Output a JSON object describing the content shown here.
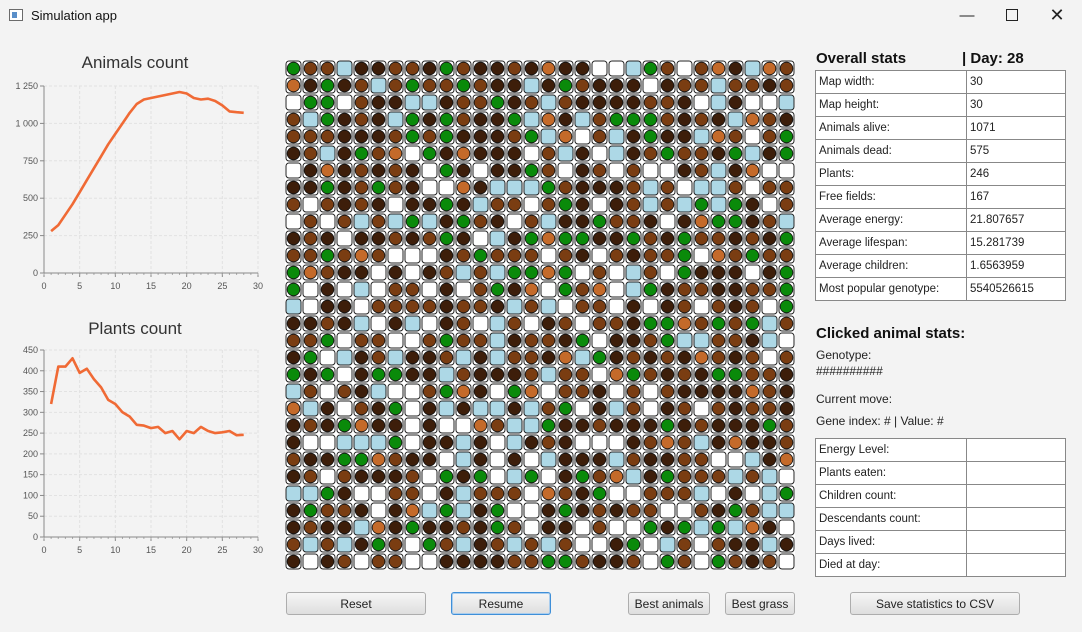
{
  "window": {
    "title": "Simulation app",
    "minimize_icon": "minimize-icon",
    "maximize_icon": "maximize-icon",
    "close_icon": "close-icon"
  },
  "chart_data": [
    {
      "type": "line",
      "title": "Animals count",
      "xlim": [
        0,
        30
      ],
      "ylim": [
        0,
        1250
      ],
      "xticks": [
        "0",
        "5",
        "10",
        "15",
        "20",
        "25",
        "30"
      ],
      "yticks": [
        "0",
        "250",
        "500",
        "750",
        "1 000",
        "1 250"
      ],
      "grid": true,
      "color": "#f06a35",
      "x": [
        1,
        2,
        3,
        4,
        5,
        6,
        7,
        8,
        9,
        10,
        11,
        12,
        13,
        14,
        15,
        16,
        17,
        18,
        19,
        20,
        21,
        22,
        23,
        24,
        25,
        26,
        27,
        28
      ],
      "y": [
        280,
        320,
        390,
        460,
        540,
        620,
        700,
        780,
        860,
        930,
        1000,
        1070,
        1130,
        1160,
        1170,
        1180,
        1190,
        1200,
        1210,
        1200,
        1170,
        1160,
        1165,
        1150,
        1120,
        1080,
        1075,
        1071
      ]
    },
    {
      "type": "line",
      "title": "Plants count",
      "xlim": [
        0,
        30
      ],
      "ylim": [
        0,
        450
      ],
      "xticks": [
        "0",
        "5",
        "10",
        "15",
        "20",
        "25",
        "30"
      ],
      "yticks": [
        "0",
        "50",
        "100",
        "150",
        "200",
        "250",
        "300",
        "350",
        "400",
        "450"
      ],
      "grid": true,
      "color": "#f06a35",
      "x": [
        1,
        2,
        3,
        4,
        5,
        6,
        7,
        8,
        9,
        10,
        11,
        12,
        13,
        14,
        15,
        16,
        17,
        18,
        19,
        20,
        21,
        22,
        23,
        24,
        25,
        26,
        27,
        28
      ],
      "y": [
        320,
        410,
        410,
        430,
        395,
        405,
        380,
        360,
        330,
        320,
        300,
        290,
        270,
        268,
        262,
        265,
        250,
        255,
        235,
        255,
        250,
        265,
        255,
        250,
        252,
        255,
        245,
        246
      ]
    }
  ],
  "board": {
    "size": 30,
    "colors": {
      "empty": "#ffffff",
      "water": "#add8e6",
      "plant": "#0a8a0a",
      "animal_dark": "#3d1e0a",
      "animal_mid": "#7a3d12",
      "animal_light": "#c46a2a"
    }
  },
  "overall": {
    "heading": "Overall stats",
    "day": "| Day: 28",
    "rows": [
      {
        "key": "Map width:",
        "value": "30"
      },
      {
        "key": "Map height:",
        "value": "30"
      },
      {
        "key": "Animals alive:",
        "value": "1071"
      },
      {
        "key": "Animals dead:",
        "value": "575"
      },
      {
        "key": "Plants:",
        "value": "246"
      },
      {
        "key": "Free fields:",
        "value": "167"
      },
      {
        "key": "Average energy:",
        "value": "21.807657"
      },
      {
        "key": "Average lifespan:",
        "value": "15.281739"
      },
      {
        "key": "Average children:",
        "value": "1.6563959"
      },
      {
        "key": "Most popular genotype:",
        "value": "5540526615"
      }
    ]
  },
  "clicked": {
    "heading": "Clicked animal stats:",
    "genotype_label": "Genotype:",
    "genotype_value": "##########",
    "current_move": "Current move:",
    "gene_index": "Gene index: # | Value: #",
    "rows": [
      {
        "key": "Energy Level:",
        "value": ""
      },
      {
        "key": "Plants eaten:",
        "value": ""
      },
      {
        "key": "Children count:",
        "value": ""
      },
      {
        "key": "Descendants count:",
        "value": ""
      },
      {
        "key": "Days lived:",
        "value": ""
      },
      {
        "key": "Died at day:",
        "value": ""
      }
    ]
  },
  "buttons": {
    "reset": "Reset",
    "resume": "Resume",
    "best_animals": "Best animals",
    "best_grass": "Best grass",
    "save_csv": "Save statistics to CSV"
  }
}
